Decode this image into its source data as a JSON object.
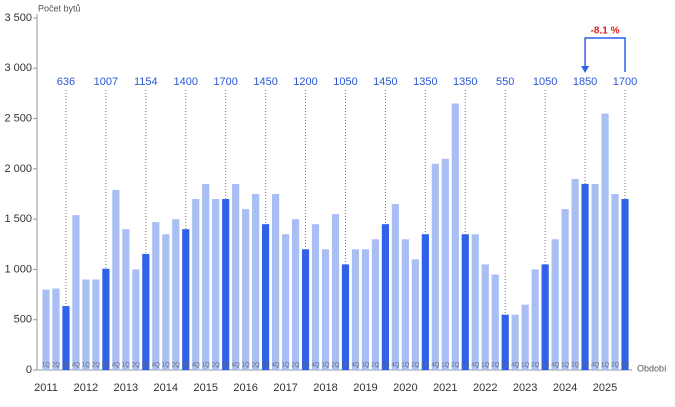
{
  "chart_data": {
    "type": "bar",
    "y_label": "Počet bytů",
    "x_label": "Období",
    "categories": [
      "1Q",
      "2Q",
      "3Q",
      "4Q",
      "1Q",
      "2Q",
      "3Q",
      "4Q",
      "1Q",
      "2Q",
      "3Q",
      "4Q",
      "1Q",
      "2Q",
      "3Q",
      "4Q",
      "1Q",
      "2Q",
      "3Q",
      "4Q",
      "1Q",
      "2Q",
      "3Q",
      "4Q",
      "1Q",
      "2Q",
      "3Q",
      "4Q",
      "1Q",
      "2Q",
      "3Q",
      "4Q",
      "1Q",
      "2Q",
      "3Q",
      "4Q",
      "1Q",
      "2Q",
      "3Q",
      "4Q",
      "1Q",
      "2Q",
      "3Q",
      "4Q",
      "1Q",
      "2Q",
      "3Q",
      "4Q",
      "1Q",
      "2Q",
      "3Q",
      "4Q",
      "1Q",
      "2Q",
      "3Q",
      "4Q",
      "1Q",
      "2Q",
      "3Q"
    ],
    "years": [
      "2011",
      "2012",
      "2013",
      "2014",
      "2015",
      "2016",
      "2017",
      "2018",
      "2019",
      "2020",
      "2021",
      "2022",
      "2023",
      "2024",
      "2025"
    ],
    "values": [
      800,
      810,
      636,
      1540,
      900,
      900,
      1007,
      1790,
      1400,
      1000,
      1154,
      1470,
      1350,
      1500,
      1400,
      1700,
      1850,
      1700,
      1700,
      1850,
      1600,
      1750,
      1450,
      1750,
      1350,
      1500,
      1200,
      1450,
      1200,
      1550,
      1050,
      1200,
      1200,
      1300,
      1450,
      1650,
      1300,
      1100,
      1350,
      2050,
      2100,
      2650,
      1350,
      1350,
      1050,
      950,
      550,
      550,
      650,
      1000,
      1050,
      1300,
      1600,
      1900,
      1850,
      1850,
      2550,
      1750,
      1700
    ],
    "color": "#a9bff4",
    "highlight_color": "#2f62e8",
    "highlight_category": "3Q",
    "annotation": "-8.1 %",
    "annotation_color": "#e0201b",
    "ylim": [
      0,
      3500
    ],
    "yticks": [
      0,
      500,
      {
        "value": 1000,
        "label": "1 000"
      },
      {
        "value": 1500,
        "label": "1 500"
      },
      {
        "value": 2000,
        "label": "2 000"
      },
      {
        "value": 2500,
        "label": "2 500"
      },
      {
        "value": 3000,
        "label": "3 000"
      },
      {
        "value": 3500,
        "label": "3 500"
      }
    ]
  }
}
